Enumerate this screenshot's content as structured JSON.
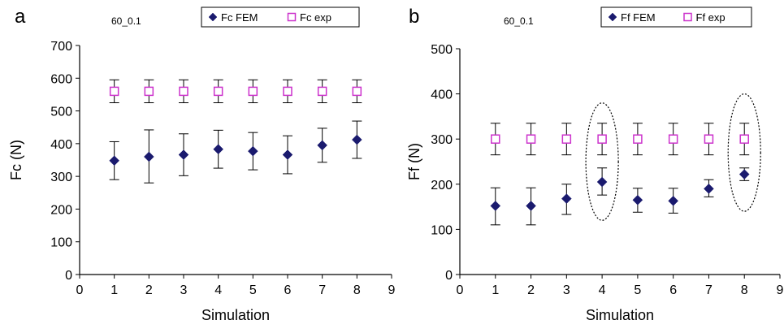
{
  "chart_data": [
    {
      "type": "scatter",
      "panel_label": "a",
      "annotation": "60_0.1",
      "xlabel": "Simulation",
      "ylabel": "Fc (N)",
      "xlim": [
        0,
        9
      ],
      "ylim": [
        0,
        700
      ],
      "x_ticks": [
        0,
        1,
        2,
        3,
        4,
        5,
        6,
        7,
        8,
        9
      ],
      "y_ticks": [
        0,
        100,
        200,
        300,
        400,
        500,
        600,
        700
      ],
      "grid": false,
      "legend_position": "top-right",
      "series": [
        {
          "name": "Fc FEM",
          "marker": "filled-diamond",
          "color": "#1a1a6e",
          "x": [
            1,
            2,
            3,
            4,
            5,
            6,
            7,
            8
          ],
          "y": [
            348,
            360,
            366,
            383,
            377,
            366,
            395,
            412
          ],
          "err_low": [
            290,
            280,
            302,
            325,
            320,
            308,
            343,
            355
          ],
          "err_high": [
            406,
            442,
            430,
            441,
            434,
            424,
            447,
            469
          ]
        },
        {
          "name": "Fc exp",
          "marker": "hollow-square",
          "color": "#cc33cc",
          "x": [
            1,
            2,
            3,
            4,
            5,
            6,
            7,
            8
          ],
          "y": [
            560,
            560,
            560,
            560,
            560,
            560,
            560,
            560
          ],
          "err_low": [
            525,
            525,
            525,
            525,
            525,
            525,
            525,
            525
          ],
          "err_high": [
            595,
            595,
            595,
            595,
            595,
            595,
            595,
            595
          ]
        }
      ],
      "highlights": []
    },
    {
      "type": "scatter",
      "panel_label": "b",
      "annotation": "60_0.1",
      "xlabel": "Simulation",
      "ylabel": "Ff (N)",
      "xlim": [
        0,
        9
      ],
      "ylim": [
        0,
        500
      ],
      "x_ticks": [
        0,
        1,
        2,
        3,
        4,
        5,
        6,
        7,
        8,
        9
      ],
      "y_ticks": [
        0,
        100,
        200,
        300,
        400,
        500
      ],
      "grid": false,
      "legend_position": "top-right",
      "series": [
        {
          "name": "Ff FEM",
          "marker": "filled-diamond",
          "color": "#1a1a6e",
          "x": [
            1,
            2,
            3,
            4,
            5,
            6,
            7,
            8
          ],
          "y": [
            152,
            152,
            168,
            205,
            165,
            163,
            190,
            222
          ],
          "err_low": [
            110,
            110,
            133,
            176,
            138,
            136,
            172,
            208
          ],
          "err_high": [
            192,
            192,
            200,
            236,
            191,
            191,
            210,
            236
          ]
        },
        {
          "name": "Ff exp",
          "marker": "hollow-square",
          "color": "#cc33cc",
          "x": [
            1,
            2,
            3,
            4,
            5,
            6,
            7,
            8
          ],
          "y": [
            300,
            300,
            300,
            300,
            300,
            300,
            300,
            300
          ],
          "err_low": [
            265,
            265,
            265,
            265,
            265,
            265,
            265,
            265
          ],
          "err_high": [
            335,
            335,
            335,
            335,
            335,
            335,
            335,
            335
          ]
        }
      ],
      "highlights": [
        {
          "x": 4,
          "y_low": 120,
          "y_high": 380,
          "style": "dotted-ellipse"
        },
        {
          "x": 8,
          "y_low": 140,
          "y_high": 400,
          "style": "dotted-ellipse"
        }
      ]
    }
  ]
}
